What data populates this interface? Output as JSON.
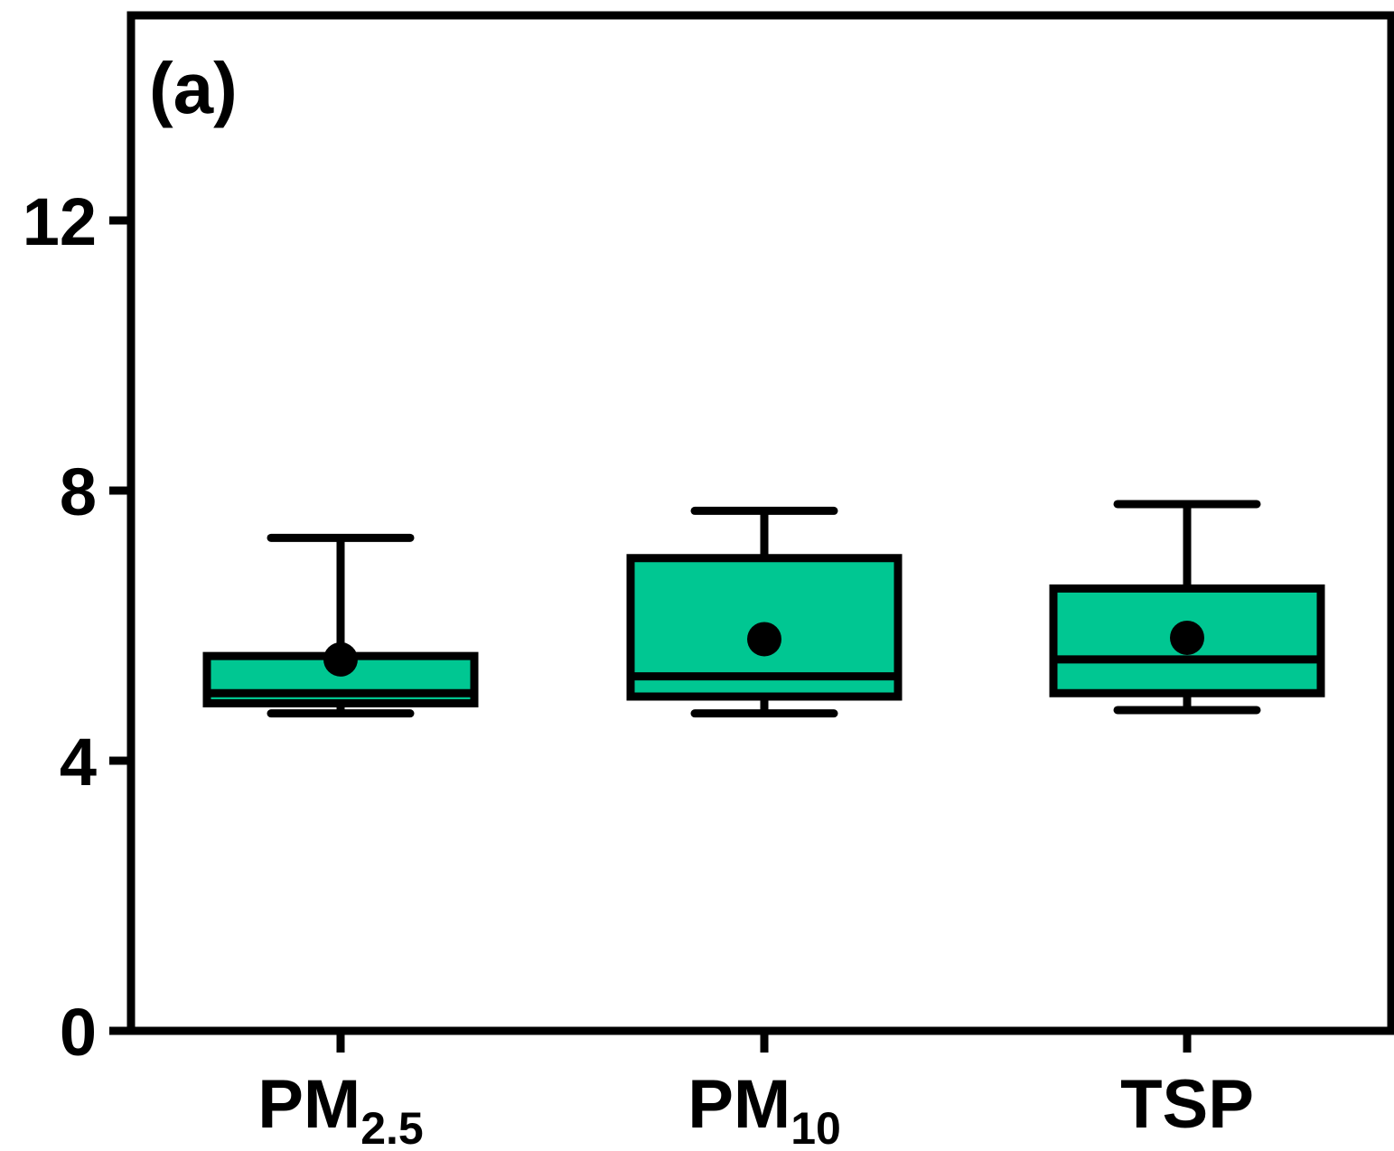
{
  "chart_data": {
    "type": "box",
    "panel_label": "(a)",
    "title": "",
    "xlabel": "",
    "ylabel": "",
    "ylim": [
      0,
      15
    ],
    "yticks": [
      0,
      4,
      8,
      12
    ],
    "ytick_labels": [
      "0",
      "4",
      "8",
      "12"
    ],
    "categories": [
      {
        "main": "PM",
        "sub": "2.5"
      },
      {
        "main": "PM",
        "sub": "10"
      },
      {
        "main": "TSP",
        "sub": ""
      }
    ],
    "boxes": [
      {
        "whisker_low": 4.7,
        "q1": 4.85,
        "median": 5.0,
        "q3": 5.55,
        "whisker_high": 7.3,
        "mean": 5.5
      },
      {
        "whisker_low": 4.7,
        "q1": 4.95,
        "median": 5.25,
        "q3": 7.0,
        "whisker_high": 7.7,
        "mean": 5.8
      },
      {
        "whisker_low": 4.75,
        "q1": 5.0,
        "median": 5.5,
        "q3": 6.55,
        "whisker_high": 7.8,
        "mean": 5.82
      }
    ],
    "grid": false,
    "legend": "none",
    "colors": {
      "box_fill": "#00c792",
      "stroke": "#000000"
    }
  }
}
